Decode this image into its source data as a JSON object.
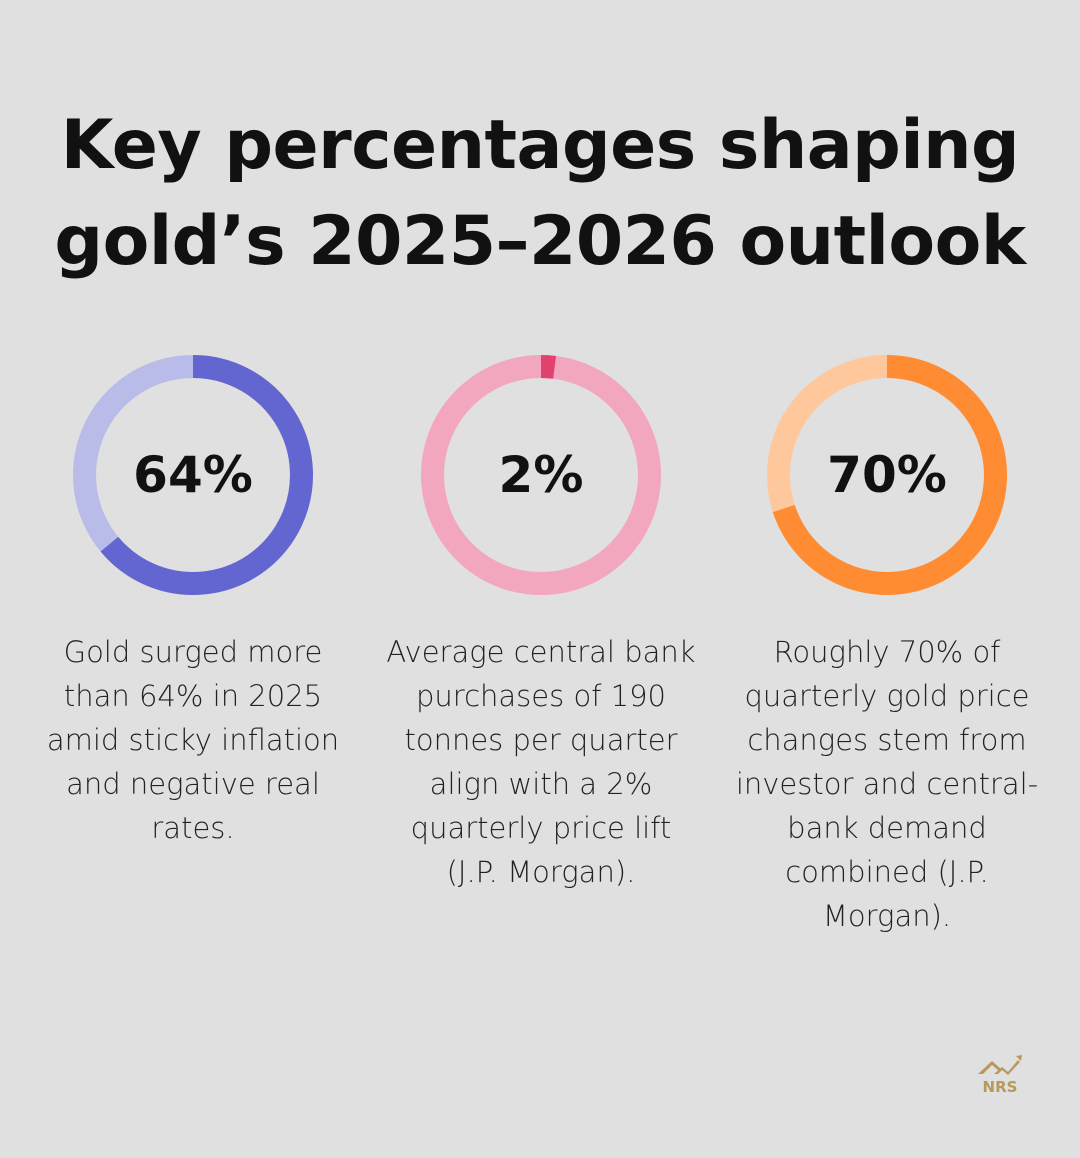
{
  "title": {
    "line1": "Key percentages shaping",
    "line2": "gold’s 2025–2026 outlook"
  },
  "chart_data": [
    {
      "type": "pie",
      "variant": "donut",
      "value": 64,
      "label": "64%",
      "color": "#6366d1",
      "track_color": "#b9bbe8",
      "description": "Gold surged more than 64% in 2025 amid sticky inflation and negative real rates."
    },
    {
      "type": "pie",
      "variant": "donut",
      "value": 2,
      "label": "2%",
      "color": "#e3416f",
      "track_color": "#f2a7bf",
      "description": "Average central bank purchases of 190 tonnes per quarter align with a 2% quarterly price lift (J.P. Morgan)."
    },
    {
      "type": "pie",
      "variant": "donut",
      "value": 70,
      "label": "70%",
      "color": "#ff8c33",
      "track_color": "#fec89c",
      "description": "Roughly 70% of quarterly gold price changes stem from investor and central-bank demand combined (J.P. Morgan)."
    }
  ],
  "logo": {
    "text": "NRS",
    "color": "#b8995a"
  }
}
